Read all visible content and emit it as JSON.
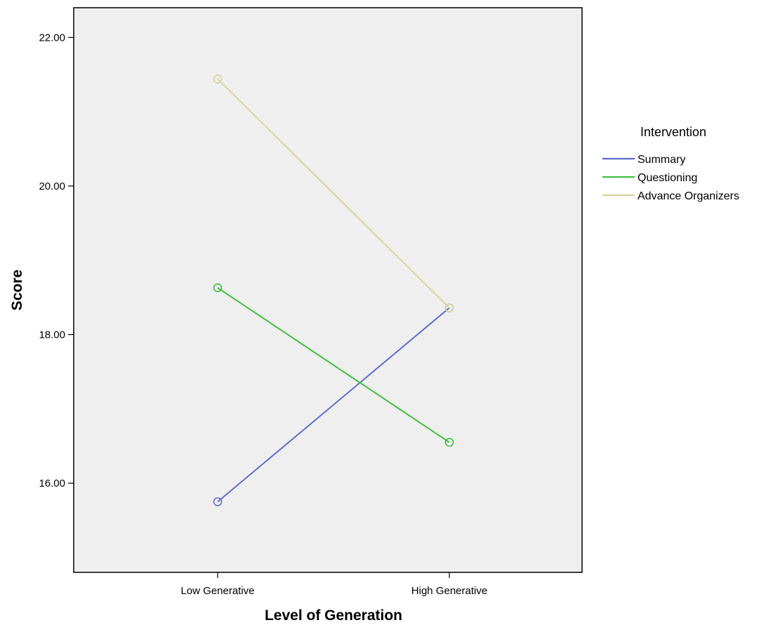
{
  "chart_data": {
    "type": "line",
    "xlabel": "Level of Generation",
    "ylabel": "Score",
    "categories": [
      "Low Generative",
      "High Generative"
    ],
    "ylim": [
      14.8,
      22.4
    ],
    "yticks": [
      16.0,
      18.0,
      20.0,
      22.0
    ],
    "ytick_labels": [
      "16.00",
      "18.00",
      "20.00",
      "22.00"
    ],
    "grid": false,
    "legend": {
      "title": "Intervention",
      "position": "right"
    },
    "series": [
      {
        "name": "Summary",
        "color": "#5b6ec9",
        "values": [
          15.75,
          18.36
        ]
      },
      {
        "name": "Questioning",
        "color": "#3fbf3f",
        "values": [
          18.63,
          16.55
        ]
      },
      {
        "name": "Advance Organizers",
        "color": "#d8d49c",
        "values": [
          21.44,
          18.36
        ]
      }
    ],
    "plot_background": "#efefef"
  }
}
